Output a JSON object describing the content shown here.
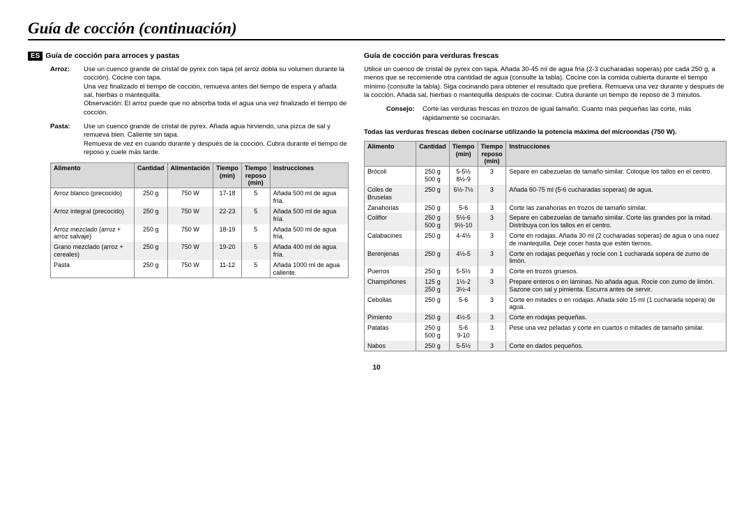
{
  "title": "Guía de cocción (continuación)",
  "lang_badge": "ES",
  "page_number": "10",
  "left": {
    "heading": "Guía de cocción para arroces y pastas",
    "notes": [
      {
        "label": "Arroz:",
        "text": "Use un cuenco grande de cristal de pyrex con tapa (el arroz dobla su volumen durante la cocción). Cocine con tapa.\nUna vez finalizado el tiempo de cocción, remueva antes del tiempo de espera y añada sal, hierbas o mantequilla.\nObservación: El arroz puede que no absorba toda el agua una vez finalizado el tiempo de cocción."
      },
      {
        "label": "Pasta:",
        "text": "Use un cuenco grande de cristal de pyrex. Añada agua hirviendo, una pizca de sal y remueva bien. Caliente sin tapa.\nRemueva de vez en cuando durante y después de la cocción. Cubra durante el tiempo de reposo y cuele más tarde."
      }
    ],
    "headers": [
      "Alimento",
      "Cantidad",
      "Alimentación",
      "Tiempo (min)",
      "Tiempo reposo (min)",
      "Instrucciones"
    ],
    "rows": [
      {
        "s": false,
        "c": [
          "Arroz blanco (precocido)",
          "250 g",
          "750 W",
          "17-18",
          "5",
          "Añada 500 ml de agua fría."
        ]
      },
      {
        "s": true,
        "c": [
          "Arroz integral (precocido)",
          "250 g",
          "750 W",
          "22-23",
          "5",
          "Añada 500 ml de agua fría."
        ]
      },
      {
        "s": false,
        "c": [
          "Arroz mezclado (arroz + arroz salvaje)",
          "250 g",
          "750 W",
          "18-19",
          "5",
          "Añada 500 ml de agua fría."
        ]
      },
      {
        "s": true,
        "c": [
          "Grano mezclado (arroz + cereales)",
          "250 g",
          "750 W",
          "19-20",
          "5",
          "Añada 400 ml de agua fría."
        ]
      },
      {
        "s": false,
        "c": [
          "Pasta",
          "250 g",
          "750 W",
          "11-12",
          "5",
          "Añada 1000 ml de agua caliente."
        ]
      }
    ]
  },
  "right": {
    "heading": "Guía de cocción para verduras frescas",
    "intro": "Utilice un cuenco de cristal de pyrex con tapa. Añada 30-45 ml de agua fría (2-3 cucharadas soperas) por cada 250 g, a menos que se recomiende otra cantidad de agua (consulte la tabla). Cocine con la comida cubierta durante el tiempo mínimo (consulte la tabla). Siga cocinando para obtener el resultado que prefiera. Remueva una vez durante y después de la cocción. Añada sal, hierbas o mantequilla después de cocinar. Cubra durante un tiempo de reposo de 3 minutos.",
    "tip_label": "Consejo:",
    "tip_text": "Corte las verduras frescas en trozos de igual tamaño. Cuanto más pequeñas las corte, más rápidamente se cocinarán.",
    "bold_note": "Todas las verduras frescas deben cocinarse utilizando la potencia máxima del microondas (750 W).",
    "headers": [
      "Alimento",
      "Cantidad",
      "Tiempo (min)",
      "Tiempo reposo (min)",
      "Instrucciones"
    ],
    "rows": [
      {
        "s": false,
        "c": [
          "Brócoli",
          "250 g\n500 g",
          "5-5½\n8½-9",
          "3",
          "Separe en cabezuelas de tamaño similar. Coloque los tallos en el centro."
        ]
      },
      {
        "s": true,
        "c": [
          "Coles de Bruselas",
          "250 g",
          "6½-7½",
          "3",
          "Añada 60-75 ml (5-6 cucharadas soperas) de agua."
        ]
      },
      {
        "s": false,
        "c": [
          "Zanahorias",
          "250 g",
          "5-6",
          "3",
          "Corte las zanahorias en trozos de tamaño similar."
        ]
      },
      {
        "s": true,
        "c": [
          "Coliflor",
          "250 g\n500 g",
          "5½-6\n9½-10",
          "3",
          "Separe en cabezuelas de tamaño similar. Corte las grandes por la mitad. Distribuya con los tallos en el centro."
        ]
      },
      {
        "s": false,
        "c": [
          "Calabacines",
          "250 g",
          "4-4½",
          "3",
          "Corte en rodajas. Añada 30 ml (2 cucharadas soperas) de agua o una nuez de mantequilla. Deje cocer hasta que estén tiernos."
        ]
      },
      {
        "s": true,
        "c": [
          "Berenjenas",
          "250 g",
          "4½-5",
          "3",
          "Corte en rodajas pequeñas y rocíe con 1 cucharada sopera de zumo de limón."
        ]
      },
      {
        "s": false,
        "c": [
          "Puerros",
          "250 g",
          "5-5½",
          "3",
          "Corte en trozos gruesos."
        ]
      },
      {
        "s": true,
        "c": [
          "Champiñones",
          "125 g\n250 g",
          "1½-2\n3½-4",
          "3",
          "Prepare enteros o en láminas. No añada agua. Rocíe con zumo de limón. Sazone con sal y pimienta. Escurra antes de servir."
        ]
      },
      {
        "s": false,
        "c": [
          "Cebollas",
          "250 g",
          "5-6",
          "3",
          "Corte en mitades o en rodajas. Añada sólo 15 ml (1 cucharada sopera) de agua."
        ]
      },
      {
        "s": true,
        "c": [
          "Pimiento",
          "250 g",
          "4½-5",
          "3",
          "Corte en rodajas pequeñas."
        ]
      },
      {
        "s": false,
        "c": [
          "Patatas",
          "250 g\n500 g",
          "5-6\n9-10",
          "3",
          "Pese una vez peladas y corte en cuartos o mitades de tamaño similar."
        ]
      },
      {
        "s": true,
        "c": [
          "Nabos",
          "250 g",
          "5-5½",
          "3",
          "Corte en dados pequeños."
        ]
      }
    ]
  }
}
